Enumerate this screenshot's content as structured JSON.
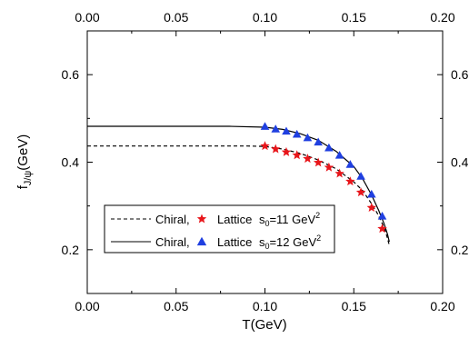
{
  "chart_data": {
    "type": "line",
    "xlabel": "T(GeV)",
    "ylabel": "f_J/ψ(GeV)",
    "ylabel_main": "f",
    "ylabel_sub": "J/ψ",
    "ylabel_unit": "(GeV)",
    "xlim": [
      0.0,
      0.2
    ],
    "ylim": [
      0.1,
      0.7
    ],
    "x_ticks": [
      "0.00",
      "0.05",
      "0.10",
      "0.15",
      "0.20"
    ],
    "x_tick_values": [
      0.0,
      0.05,
      0.1,
      0.15,
      0.2
    ],
    "y_ticks": [
      "0.2",
      "0.4",
      "0.6"
    ],
    "y_tick_values": [
      0.2,
      0.4,
      0.6
    ],
    "grid": false,
    "legend_position": "bottom-left",
    "series": [
      {
        "legend_label": "Chiral,",
        "kind": "line",
        "dash": "dashed",
        "color": "#000000",
        "x": [
          0.0,
          0.05,
          0.09,
          0.1,
          0.11,
          0.12,
          0.13,
          0.14,
          0.15,
          0.155,
          0.16,
          0.163,
          0.166,
          0.168,
          0.169,
          0.17
        ],
        "y": [
          0.437,
          0.437,
          0.437,
          0.436,
          0.43,
          0.42,
          0.405,
          0.385,
          0.355,
          0.335,
          0.305,
          0.285,
          0.26,
          0.24,
          0.225,
          0.21
        ]
      },
      {
        "legend_label": "Lattice",
        "legend_param": "s",
        "legend_param_sub": "0",
        "legend_value": "=11 GeV",
        "legend_exp": "2",
        "kind": "scatter",
        "marker": "star",
        "color": "#e8161b",
        "x": [
          0.1,
          0.106,
          0.112,
          0.118,
          0.124,
          0.13,
          0.136,
          0.142,
          0.148,
          0.154,
          0.16,
          0.166
        ],
        "y": [
          0.437,
          0.43,
          0.423,
          0.416,
          0.408,
          0.399,
          0.388,
          0.374,
          0.356,
          0.331,
          0.296,
          0.248
        ]
      },
      {
        "legend_label": "Chiral,",
        "kind": "line",
        "dash": "solid",
        "color": "#000000",
        "x": [
          0.0,
          0.05,
          0.08,
          0.1,
          0.11,
          0.12,
          0.13,
          0.14,
          0.15,
          0.155,
          0.16,
          0.164,
          0.167,
          0.169,
          0.17
        ],
        "y": [
          0.482,
          0.482,
          0.482,
          0.48,
          0.475,
          0.465,
          0.45,
          0.425,
          0.39,
          0.362,
          0.325,
          0.29,
          0.26,
          0.235,
          0.218
        ]
      },
      {
        "legend_label": "Lattice",
        "legend_param": "s",
        "legend_param_sub": "0",
        "legend_value": "=12 GeV",
        "legend_exp": "2",
        "kind": "scatter",
        "marker": "triangle",
        "color": "#1f3fe0",
        "x": [
          0.1,
          0.106,
          0.112,
          0.118,
          0.124,
          0.13,
          0.136,
          0.142,
          0.148,
          0.154,
          0.16,
          0.166
        ],
        "y": [
          0.482,
          0.476,
          0.471,
          0.464,
          0.456,
          0.446,
          0.433,
          0.416,
          0.395,
          0.368,
          0.327,
          0.277
        ]
      }
    ]
  }
}
